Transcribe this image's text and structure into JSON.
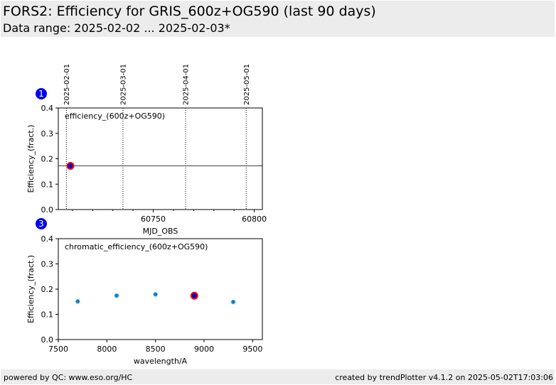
{
  "header": {
    "title": "FORS2: Efficiency for GRIS_600z+OG590 (last 90 days)",
    "subtitle": "Data range: 2025-02-02 ... 2025-02-03*"
  },
  "footer": {
    "left": "powered by QC: www.eso.org/HC",
    "right": "created by trendPlotter v4.1.2 on 2025-05-02T17:03:06"
  },
  "colors": {
    "marker_outline": "#ff0000",
    "marker_fill": "#0000cc",
    "point_fill": "#1f77b4",
    "badge": "#0000ee",
    "header_bg": "#ececec"
  },
  "chart_data": [
    {
      "type": "scatter",
      "badge": "1",
      "annotation": "efficiency_(600z+OG590)",
      "xlabel": "MJD_OBS",
      "ylabel": "Efficiency_(fract.)",
      "xlim": [
        60703,
        60804
      ],
      "ylim": [
        0,
        0.4
      ],
      "xticks": [
        60750,
        60800
      ],
      "yticks": [
        0.0,
        0.1,
        0.2,
        0.3,
        0.4
      ],
      "top_date_ticks": [
        {
          "label": "2025-02-01",
          "x": 60707
        },
        {
          "label": "2025-03-01",
          "x": 60735
        },
        {
          "label": "2025-04-01",
          "x": 60766
        },
        {
          "label": "2025-05-01",
          "x": 60796
        }
      ],
      "reference_line": 0.172,
      "highlight": [
        {
          "x": 60709,
          "y": 0.172
        }
      ],
      "points": []
    },
    {
      "type": "scatter",
      "badge": "3",
      "annotation": "chromatic_efficiency_(600z+OG590)",
      "xlabel": "wavelength/A",
      "ylabel": "Efficiency_(fract.)",
      "xlim": [
        7500,
        9600
      ],
      "ylim": [
        0,
        0.4
      ],
      "xticks": [
        7500,
        8000,
        8500,
        9000,
        9500
      ],
      "yticks": [
        0.0,
        0.1,
        0.2,
        0.3,
        0.4
      ],
      "points": [
        {
          "x": 7700,
          "y": 0.151
        },
        {
          "x": 8100,
          "y": 0.174
        },
        {
          "x": 8500,
          "y": 0.179
        },
        {
          "x": 8900,
          "y": 0.174
        },
        {
          "x": 9300,
          "y": 0.149
        }
      ],
      "highlight": [
        {
          "x": 8900,
          "y": 0.174
        }
      ]
    }
  ]
}
